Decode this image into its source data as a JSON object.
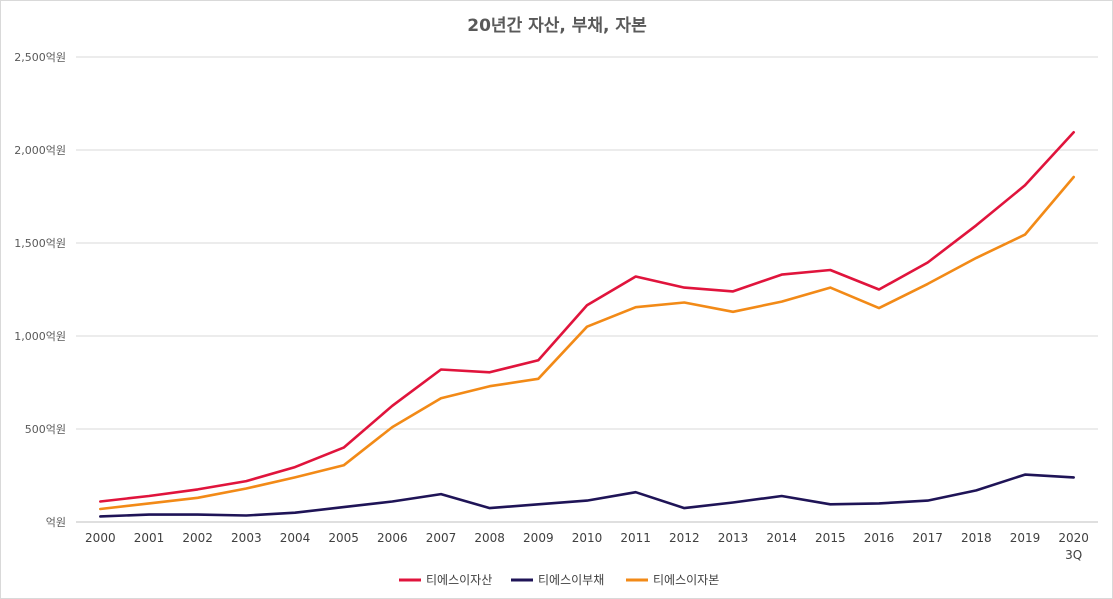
{
  "chart_data": {
    "type": "line",
    "title": "20년간 자산, 부채, 자본",
    "xlabel": "",
    "ylabel": "",
    "categories": [
      [
        "2000"
      ],
      [
        "2001"
      ],
      [
        "2002"
      ],
      [
        "2003"
      ],
      [
        "2004"
      ],
      [
        "2005"
      ],
      [
        "2006"
      ],
      [
        "2007"
      ],
      [
        "2008"
      ],
      [
        "2009"
      ],
      [
        "2010"
      ],
      [
        "2011"
      ],
      [
        "2012"
      ],
      [
        "2013"
      ],
      [
        "2014"
      ],
      [
        "2015"
      ],
      [
        "2016"
      ],
      [
        "2017"
      ],
      [
        "2018"
      ],
      [
        "2019"
      ],
      [
        "2020",
        "3Q"
      ]
    ],
    "ylim": [
      0,
      2500
    ],
    "yticks": [
      0,
      500,
      1000,
      1500,
      2000,
      2500
    ],
    "ytick_labels": [
      "억원",
      "500억원",
      "1,000억원",
      "1,500억원",
      "2,000억원",
      "2,500억원"
    ],
    "grid": true,
    "legend_position": "bottom",
    "series": [
      {
        "name": "티에스이자산",
        "color": "#e0143c",
        "values": [
          110,
          140,
          175,
          220,
          295,
          400,
          625,
          820,
          805,
          870,
          1165,
          1320,
          1260,
          1240,
          1330,
          1355,
          1250,
          1395,
          1595,
          1810,
          2095
        ]
      },
      {
        "name": "티에스이부채",
        "color": "#1f1457",
        "values": [
          30,
          40,
          40,
          35,
          50,
          80,
          110,
          150,
          75,
          95,
          115,
          160,
          75,
          105,
          140,
          95,
          100,
          115,
          170,
          255,
          240
        ]
      },
      {
        "name": "티에스이자본",
        "color": "#f28a17",
        "values": [
          70,
          100,
          130,
          180,
          240,
          305,
          510,
          665,
          730,
          770,
          1050,
          1155,
          1180,
          1130,
          1185,
          1260,
          1150,
          1280,
          1420,
          1545,
          1855
        ]
      }
    ]
  }
}
